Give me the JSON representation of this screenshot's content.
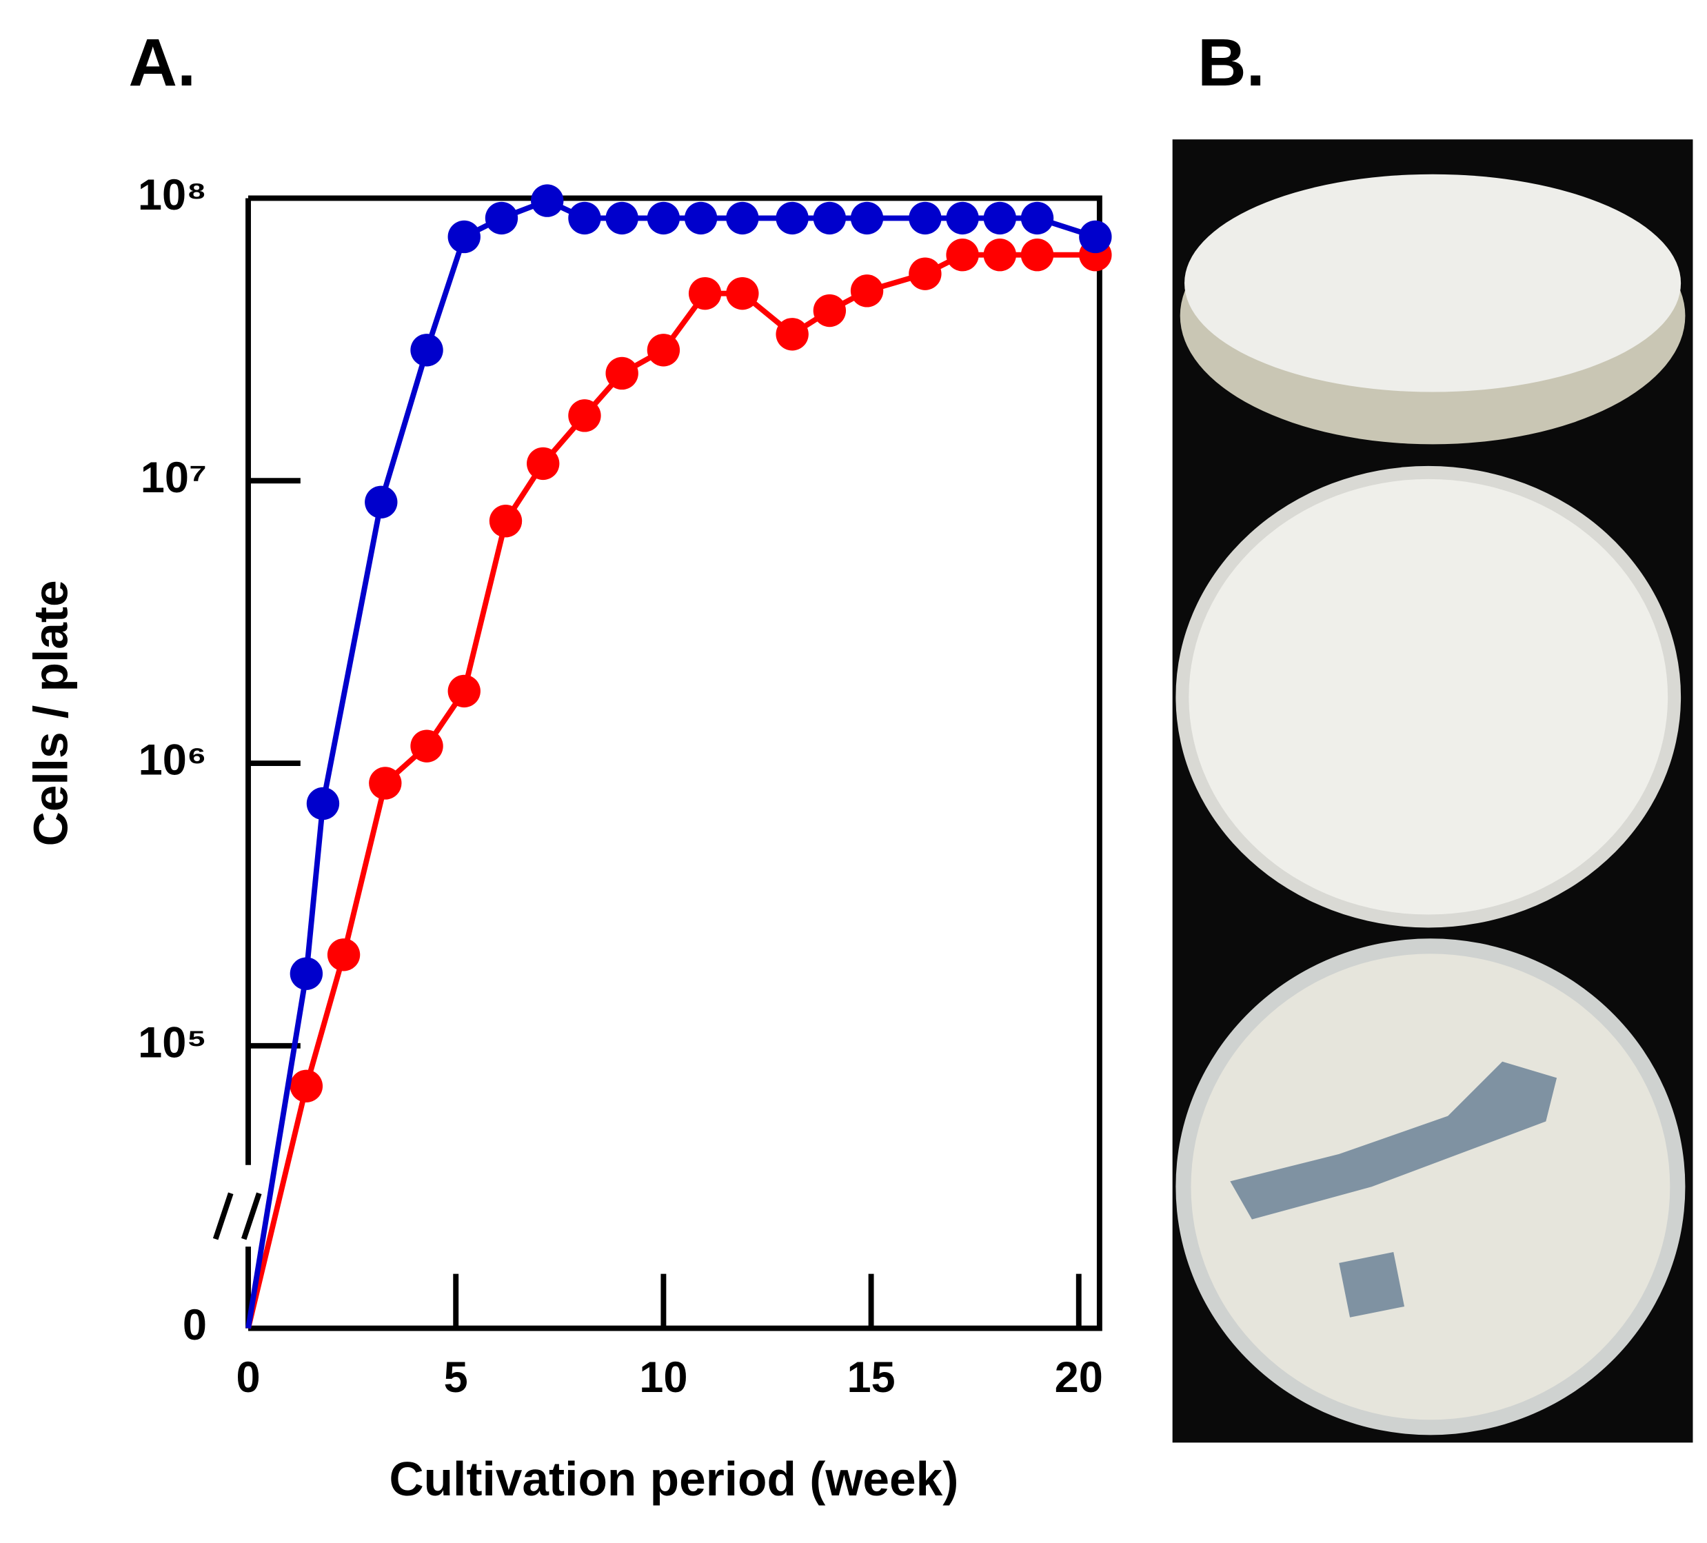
{
  "panel_labels": [
    "A.",
    "B."
  ],
  "chart_data": {
    "type": "line",
    "xlabel": "Cultivation period (week)",
    "ylabel": "Cells / plate",
    "xlim": [
      0,
      20.5
    ],
    "xticks": [
      0,
      5,
      10,
      15,
      20
    ],
    "ylim": [
      0,
      100000000
    ],
    "log_y": true,
    "axis_break": true,
    "yticks": [
      0,
      {
        "value": 100000,
        "label": "10⁵"
      },
      {
        "value": 1000000,
        "label": "10⁶"
      },
      {
        "value": 10000000,
        "label": "10⁷"
      },
      {
        "value": 100000000,
        "label": "10⁸"
      }
    ],
    "series": [
      {
        "color": "#0000cc",
        "x": [
          0,
          1.4,
          1.8,
          3.2,
          4.3,
          5.2,
          6.1,
          7.2,
          8.1,
          9,
          10,
          10.9,
          11.9,
          13.1,
          14,
          14.9,
          16.3,
          17.2,
          18.1,
          19,
          20.4
        ],
        "values": [
          0,
          180000,
          720000,
          8400000,
          29000000,
          73000000,
          85000000,
          98000000,
          85000000,
          85000000,
          85000000,
          85000000,
          85000000,
          85000000,
          85000000,
          85000000,
          85000000,
          85000000,
          85000000,
          85000000,
          73000000
        ]
      },
      {
        "color": "#ff0000",
        "x": [
          0,
          1.4,
          2.3,
          3.3,
          4.3,
          5.2,
          6.2,
          7.1,
          8.1,
          9,
          10,
          11,
          11.9,
          13.1,
          14,
          14.9,
          16.3,
          17.2,
          18.1,
          19,
          20.4
        ],
        "values": [
          0,
          72000,
          210000,
          850000,
          1150000,
          1800000,
          7200000,
          11500000,
          17000000,
          24000000,
          29000000,
          46000000,
          46000000,
          33000000,
          40000000,
          47000000,
          54000000,
          63000000,
          63000000,
          63000000,
          63000000
        ]
      }
    ]
  }
}
